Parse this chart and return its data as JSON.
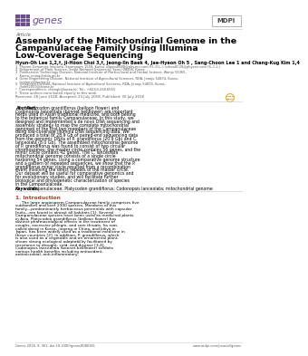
{
  "bg_color": "#ffffff",
  "header_journal": "genes",
  "header_journal_color": "#6b4c8e",
  "header_article_label": "Article",
  "title_lines": [
    "Assembly of the Mitochondrial Genome in the",
    "Campanulaceae Family Using Illumina",
    "Low-Coverage Sequencing"
  ],
  "authors": "Hyun-Oh Lee 1,2,†, Ji-Hôon Choi 3,†, Jeong-Iln Baek 4, Jae-Hyeon Oh 5 , Sang-Choon Lee 1 and Chang-Kug Kim 1,4",
  "affiliations": [
    "1  Phyzen Genomics Institute, Seongnam 1558, Korea; dlguss8888@phyzen.com (H.-O.L.); schoo0C20@phyzen.com (S.-C.L.)",
    "2  Department of Plant Science, Seoul National University, Seoul 08826, Korea.",
    "3  Postharvest Technology Division, National Institute of Horticultural and Herbal Science, Wanju 55365,",
    "    Korea; jeong@nlda.go.kr",
    "4  Gene Engineering Division, National Institute of Agricultural Sciences, RDA, Jeonju 54874, Korea;",
    "    livelonoi@korea.kr",
    "5  Genomics Division, National Institute of Agricultural Sciences, RDA, Jeonju 54874, Korea;",
    "    jhoh82000@korea.kr",
    "*  Correspondence: changk@korea.kr; Tel.: +82-63-238-6555",
    "†  These authors contributed equally to this work."
  ],
  "received_line": "Received: 28 June 2018; Accepted: 23 July 2018; Published: 30 July 2018",
  "abstract_label": "Abstract:",
  "abstract_text": " Platycodon grandiflorus (balloon flower) and Codonopsis lanceolata (bonnet bellflower) are important herbs used in Asian traditional medicine, and both belong to the botanical family Campanulaceae. In this study, we designed and implemented a de novo DNA sequencing and assembly strategy to map the complete mitochondrial genomes of the first two members of the Campanulaceae using low-coverage Illumina DNA sequencing data. We produced a total of 28.9 Gb of paired-end sequencing data from the genomic DNAs of P. grandiflorus (20.9 Gb) and C. lanceolata (8.0 Gb). The assembled mitochondrial genome of P. grandiflorus was found to consist of two circular chromosomes; the master circle contains 56 genes, and the minor circle contains 42 genes. The C. lanceolata mitochondrial genome consists of a single circle harboring 54 genes. Using a comparative genome structure and a pattern of repeated sequences, we show that the P. grandiflorus minor circle resulted from a recombination event involving the direct repeats of the master circle. Our dataset will be useful for comparative genomics and for evolutionary studies, and will facilitate further biological and phylogenetic characterization of species in the Campanulaceae.",
  "keywords_label": "Keywords:",
  "keywords_text": " Campanulaceae; Platycodon grandiflorus; Codonopsis lanceolata; mitochondrial genome",
  "section_title": "1. Introduction",
  "section_color": "#c0392b",
  "intro_text": "The large angiosperm Campanulaceae family comprises five subfamilies and over 2300 species. Members of this family—predominantly herbaceous perennials with capsular fruits—are found in almost all habitats [1]. Several Campanulaceae species have been used as medicinal plants in Asia. Platycodon grandiflorus (balloon flower) has distinct pharmacological effects in the treatment of coughs, excessive phlegm, and sore throats. Its root, called doraji in Korea, jiegeng in China, and kikyo in Japan, has been widely used as a traditional medicine in these countries [2]. In addition, P. grandiflorus, which is also used as a vegetable and an ornamental plant, shows strong ecological adaptability facilitated by resistance to drought, cold, and disease [3,4]. Codonopsis lanceolata (bonnet bellflower) exhibits various health benefits including antioxidant, antimicrobial, anti-inflammatory,",
  "footer_left": "Genes 2018, 9, 361; doi:10.3390/genes9080361",
  "footer_right": "www.mdpi.com/journal/genes",
  "text_color": "#222222",
  "gray_color": "#555555",
  "line_color": "#cccccc"
}
